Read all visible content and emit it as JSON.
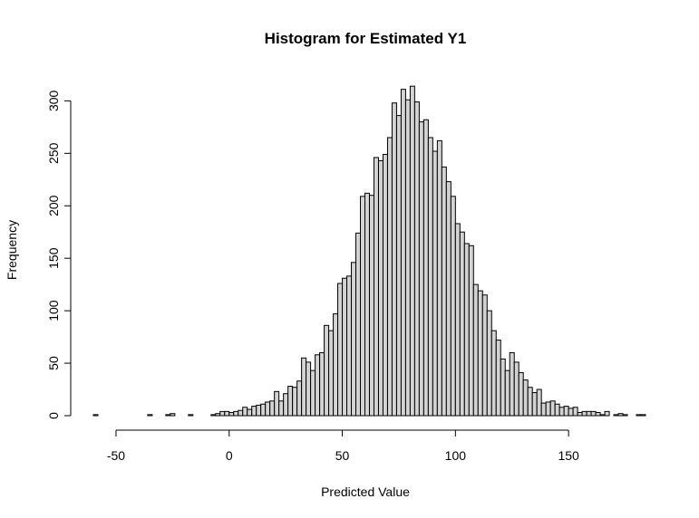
{
  "chart_data": {
    "type": "bar",
    "subtype": "histogram",
    "title": "Histogram for Estimated Y1",
    "xlabel": "Predicted Value",
    "ylabel": "Frequency",
    "xlim": [
      -60,
      182
    ],
    "ylim": [
      0,
      315
    ],
    "xticks": [
      -50,
      0,
      50,
      100,
      150
    ],
    "yticks": [
      0,
      50,
      100,
      150,
      200,
      250,
      300
    ],
    "bin_start": -60,
    "bin_width": 2,
    "bar_fill": "#d3d3d3",
    "bar_stroke": "#000000",
    "values": [
      1,
      0,
      0,
      0,
      0,
      0,
      0,
      0,
      0,
      0,
      0,
      0,
      1,
      0,
      0,
      0,
      1,
      2,
      0,
      0,
      0,
      1,
      0,
      0,
      0,
      0,
      1,
      2,
      4,
      4,
      3,
      4,
      5,
      8,
      6,
      9,
      10,
      11,
      13,
      14,
      23,
      14,
      21,
      28,
      27,
      33,
      55,
      51,
      43,
      58,
      60,
      86,
      81,
      97,
      126,
      131,
      133,
      146,
      174,
      209,
      212,
      210,
      246,
      243,
      249,
      265,
      298,
      286,
      311,
      301,
      314,
      299,
      280,
      282,
      265,
      252,
      262,
      237,
      223,
      209,
      183,
      175,
      164,
      162,
      125,
      119,
      115,
      100,
      81,
      72,
      54,
      43,
      60,
      51,
      41,
      34,
      27,
      22,
      25,
      12,
      13,
      14,
      11,
      8,
      9,
      7,
      8,
      3,
      4,
      4,
      4,
      3,
      1,
      4,
      0,
      1,
      2,
      1,
      0,
      0,
      1,
      1
    ]
  }
}
